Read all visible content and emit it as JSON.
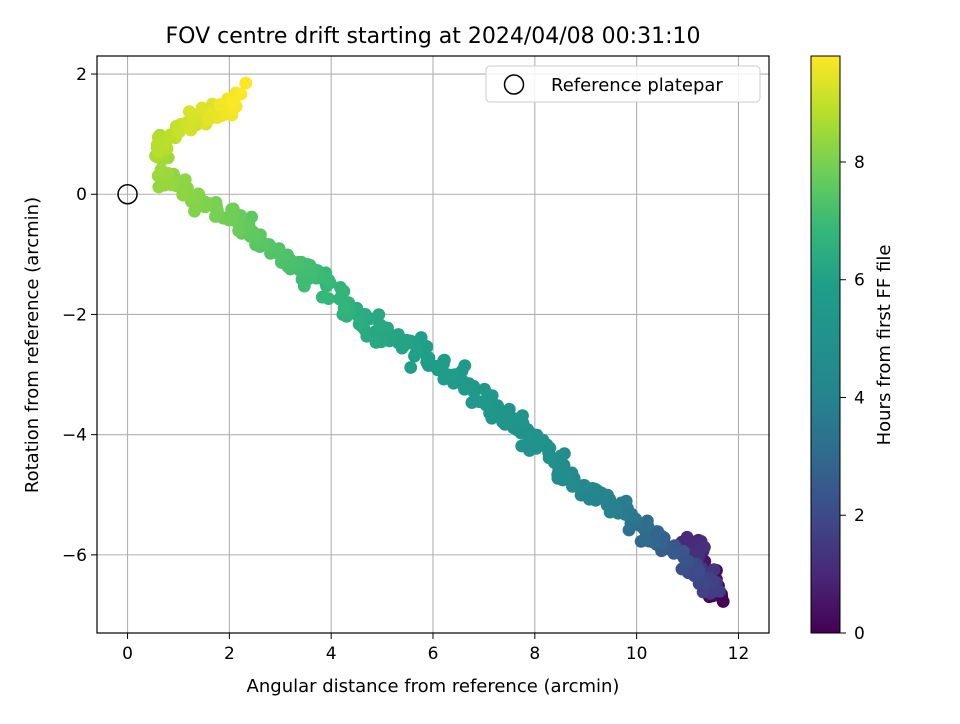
{
  "chart_data": {
    "type": "scatter",
    "title": "FOV centre drift starting at 2024/04/08 00:31:10",
    "xlabel": "Angular distance from reference (arcmin)",
    "ylabel": "Rotation from reference (arcmin)",
    "xlim": [
      -0.6,
      12.6
    ],
    "ylim": [
      -7.3,
      2.3
    ],
    "xticks": [
      0,
      2,
      4,
      6,
      8,
      10,
      12
    ],
    "yticks": [
      -6,
      -4,
      -2,
      0,
      2
    ],
    "xtick_labels": [
      "0",
      "2",
      "4",
      "6",
      "8",
      "10",
      "12"
    ],
    "ytick_labels": [
      "−6",
      "−4",
      "−2",
      "0",
      "2"
    ],
    "grid": true,
    "legend": {
      "position": "top-right",
      "entries": [
        "Reference platepar"
      ]
    },
    "reference_point": {
      "x": 0,
      "y": 0,
      "marker": "open-circle"
    },
    "colorbar": {
      "label": "Hours from first FF file",
      "min": 0,
      "max": 9.8,
      "ticks": [
        0,
        2,
        4,
        6,
        8
      ],
      "tick_labels": [
        "0",
        "2",
        "4",
        "6",
        "8"
      ],
      "colormap": "viridis"
    },
    "trajectory": [
      [
        11.7,
        -6.8,
        0.0
      ],
      [
        11.3,
        -6.1,
        0.5
      ],
      [
        11.05,
        -5.75,
        1.0
      ],
      [
        11.5,
        -6.6,
        1.6
      ],
      [
        10.9,
        -6.1,
        2.2
      ],
      [
        10.2,
        -5.6,
        3.0
      ],
      [
        9.6,
        -5.2,
        3.8
      ],
      [
        8.8,
        -4.8,
        4.4
      ],
      [
        8.2,
        -4.2,
        4.9
      ],
      [
        7.2,
        -3.6,
        5.3
      ],
      [
        6.3,
        -2.9,
        5.7
      ],
      [
        5.3,
        -2.4,
        6.1
      ],
      [
        4.4,
        -2.0,
        6.5
      ],
      [
        3.9,
        -1.5,
        6.9
      ],
      [
        3.0,
        -1.0,
        7.3
      ],
      [
        2.2,
        -0.5,
        7.7
      ],
      [
        1.4,
        -0.15,
        8.1
      ],
      [
        0.7,
        0.3,
        8.4
      ],
      [
        0.6,
        0.8,
        8.7
      ],
      [
        1.0,
        1.05,
        9.0
      ],
      [
        1.5,
        1.3,
        9.3
      ],
      [
        1.9,
        1.45,
        9.6
      ],
      [
        2.3,
        1.65,
        9.8
      ]
    ]
  }
}
